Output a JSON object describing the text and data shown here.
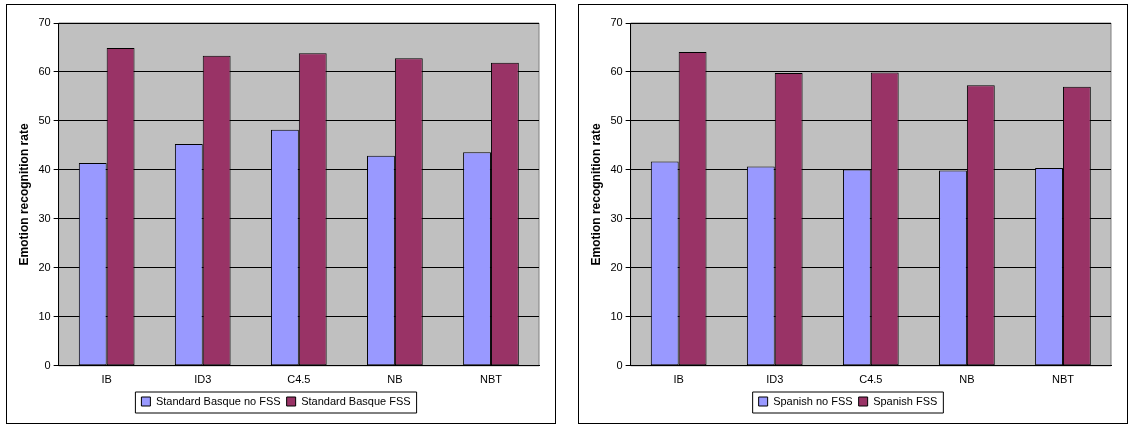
{
  "chart_data": [
    {
      "type": "bar",
      "categories": [
        "IB",
        "ID3",
        "C4.5",
        "NB",
        "NBT"
      ],
      "ylabel": "Emotion recognition rate",
      "ylim": [
        0,
        70
      ],
      "yticks": [
        0,
        10,
        20,
        30,
        40,
        50,
        60,
        70
      ],
      "grid": "y",
      "legend": "bottom",
      "series": [
        {
          "name": "Standard Basque no FSS",
          "color": "#9999ff",
          "values": [
            41.4,
            45.3,
            48.2,
            42.9,
            43.6
          ]
        },
        {
          "name": "Standard Basque FSS",
          "color": "#993366",
          "values": [
            64.9,
            63.3,
            63.8,
            62.8,
            61.9
          ]
        }
      ]
    },
    {
      "type": "bar",
      "categories": [
        "IB",
        "ID3",
        "C4.5",
        "NB",
        "NBT"
      ],
      "ylabel": "Emotion recognition rate",
      "ylim": [
        0,
        70
      ],
      "yticks": [
        0,
        10,
        20,
        30,
        40,
        50,
        60,
        70
      ],
      "grid": "y",
      "legend": "bottom",
      "series": [
        {
          "name": "Spanish no FSS",
          "color": "#9999ff",
          "values": [
            41.7,
            40.7,
            40.1,
            39.9,
            40.4
          ]
        },
        {
          "name": "Spanish FSS",
          "color": "#993366",
          "values": [
            64.1,
            59.8,
            59.9,
            57.3,
            57.0
          ]
        }
      ]
    }
  ]
}
